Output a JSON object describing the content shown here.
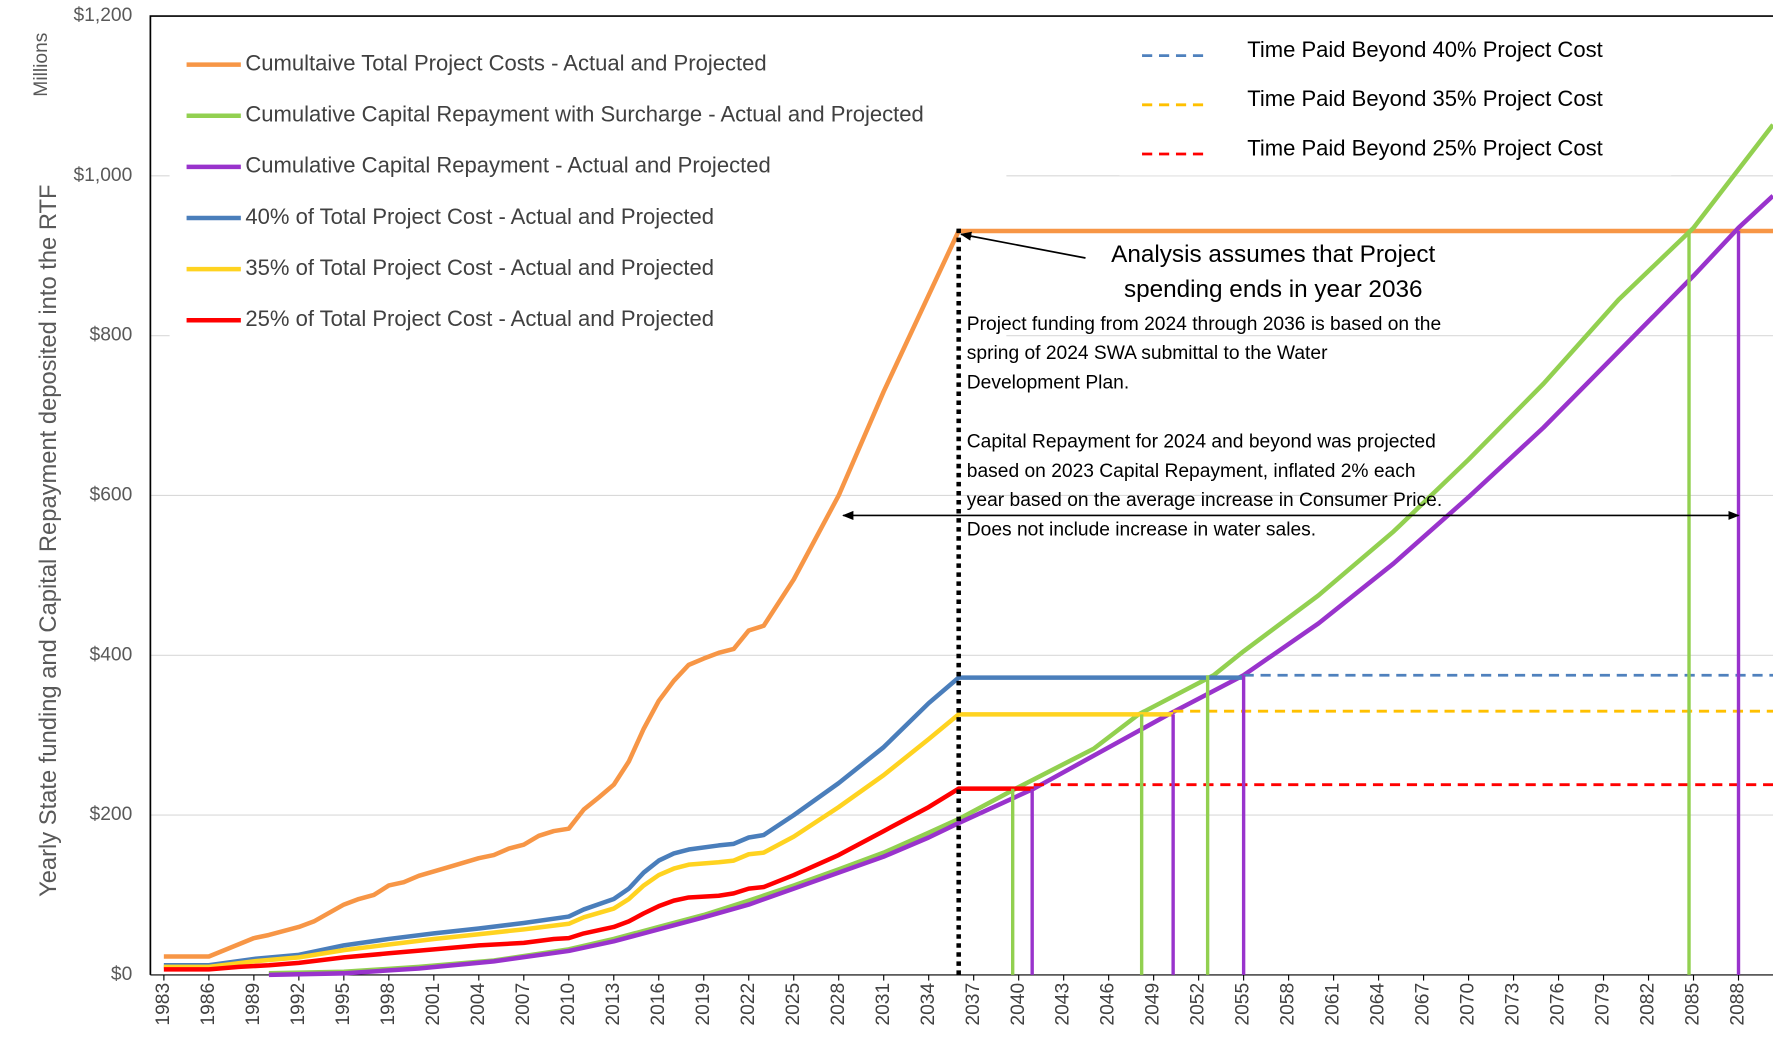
{
  "chart_data": {
    "type": "line",
    "y_axis_label": "Yearly State funding and Capital Repayment deposited into the RTF",
    "y_unit": "Millions",
    "xlim": [
      1982.1,
      2090.3
    ],
    "xticks": [
      1983,
      1986,
      1989,
      1992,
      1995,
      1998,
      2001,
      2004,
      2007,
      2010,
      2013,
      2016,
      2019,
      2022,
      2025,
      2028,
      2031,
      2034,
      2037,
      2040,
      2043,
      2046,
      2049,
      2052,
      2055,
      2058,
      2061,
      2064,
      2067,
      2070,
      2073,
      2076,
      2079,
      2082,
      2085,
      2088
    ],
    "ylim": [
      0,
      1200
    ],
    "yticks": [
      {
        "value": 0,
        "label": "$0"
      },
      {
        "value": 200,
        "label": "$200"
      },
      {
        "value": 400,
        "label": "$400"
      },
      {
        "value": 600,
        "label": "$600"
      },
      {
        "value": 800,
        "label": "$800"
      },
      {
        "value": 1000,
        "label": "$1,000"
      },
      {
        "value": 1200,
        "label": "$1,200"
      }
    ],
    "grid": true,
    "series": [
      {
        "name": "Cumultaive Total Project Costs - Actual and Projected",
        "color": "#f79646",
        "dash": false,
        "legend": "left",
        "x": [
          1983,
          1986,
          1989,
          1990,
          1992,
          1993,
          1995,
          1996,
          1997,
          1998,
          1999,
          2000,
          2002,
          2004,
          2005,
          2006,
          2007,
          2008,
          2009,
          2010,
          2011,
          2012,
          2013,
          2014,
          2015,
          2016,
          2017,
          2018,
          2019,
          2020,
          2021,
          2022,
          2023,
          2025,
          2028,
          2031,
          2036,
          2090.3
        ],
        "values": [
          23,
          23,
          46,
          50,
          60,
          67,
          88,
          95,
          100,
          112,
          116,
          124,
          135,
          146,
          150,
          158,
          163,
          174,
          180,
          183,
          207,
          222,
          238,
          267,
          308,
          343,
          368,
          388,
          396,
          403,
          408,
          431,
          437,
          495,
          600,
          730,
          931,
          931
        ]
      },
      {
        "name": "Cumulative Capital Repayment with Surcharge - Actual and Projected",
        "color": "#92d050",
        "dash": false,
        "legend": "left",
        "x": [
          1990,
          1995,
          2000,
          2005,
          2010,
          2013,
          2016,
          2019,
          2022,
          2025,
          2028,
          2031,
          2034,
          2036,
          2040,
          2045,
          2048,
          2053,
          2055,
          2060,
          2065,
          2070,
          2075,
          2080,
          2085,
          2090.3
        ],
        "values": [
          2,
          4,
          10,
          18,
          32,
          45,
          60,
          75,
          93,
          112,
          132,
          153,
          178,
          195,
          235,
          283,
          326,
          375,
          405,
          475,
          555,
          645,
          740,
          845,
          935,
          1064
        ]
      },
      {
        "name": "Cumulative Capital Repayment - Actual and Projected",
        "color": "#9933cc",
        "dash": false,
        "legend": "left",
        "x": [
          1990,
          1995,
          2000,
          2005,
          2010,
          2013,
          2016,
          2019,
          2022,
          2025,
          2028,
          2031,
          2034,
          2036,
          2041,
          2050,
          2055,
          2060,
          2065,
          2070,
          2075,
          2080,
          2085,
          2088,
          2090.3
        ],
        "values": [
          0,
          2,
          8,
          17,
          30,
          42,
          57,
          72,
          88,
          108,
          128,
          148,
          172,
          190,
          233,
          326,
          375,
          440,
          515,
          598,
          685,
          780,
          875,
          935,
          975
        ]
      },
      {
        "name": "40% of Total Project Cost - Actual and Projected",
        "color": "#4a7ebb",
        "dash": false,
        "legend": "left",
        "x": [
          1983,
          1986,
          1989,
          1992,
          1995,
          1998,
          2001,
          2004,
          2007,
          2010,
          2011,
          2013,
          2014,
          2015,
          2016,
          2017,
          2018,
          2020,
          2021,
          2022,
          2023,
          2025,
          2028,
          2031,
          2034,
          2036,
          2055
        ],
        "values": [
          12,
          12,
          20,
          25,
          37,
          45,
          52,
          58,
          65,
          73,
          82,
          95,
          108,
          128,
          143,
          152,
          157,
          162,
          164,
          172,
          175,
          200,
          240,
          285,
          340,
          372,
          372
        ]
      },
      {
        "name": "35% of Total Project Cost - Actual and Projected",
        "color": "#ffd320",
        "dash": false,
        "legend": "left",
        "x": [
          1983,
          1986,
          1989,
          1992,
          1995,
          1998,
          2001,
          2004,
          2007,
          2010,
          2011,
          2013,
          2014,
          2015,
          2016,
          2017,
          2018,
          2020,
          2021,
          2022,
          2023,
          2025,
          2028,
          2031,
          2034,
          2036,
          2050.3
        ],
        "values": [
          10,
          10,
          17,
          22,
          31,
          38,
          45,
          51,
          57,
          64,
          72,
          83,
          95,
          112,
          125,
          133,
          138,
          141,
          143,
          151,
          153,
          173,
          210,
          250,
          295,
          326,
          326
        ]
      },
      {
        "name": "25% of Total Project Cost - Actual and Projected",
        "color": "#ff0000",
        "dash": false,
        "legend": "left",
        "x": [
          1983,
          1986,
          1988,
          1990,
          1992,
          1995,
          1998,
          2001,
          2004,
          2007,
          2009,
          2010,
          2011,
          2013,
          2014,
          2015,
          2016,
          2017,
          2018,
          2020,
          2021,
          2022,
          2023,
          2025,
          2028,
          2031,
          2034,
          2036,
          2041
        ],
        "values": [
          7,
          7,
          10,
          12,
          15,
          22,
          27,
          32,
          37,
          40,
          45,
          46,
          52,
          60,
          67,
          77,
          86,
          93,
          97,
          99,
          102,
          108,
          110,
          125,
          150,
          180,
          210,
          233,
          233
        ]
      },
      {
        "name": "Time Paid Beyond 40% Project Cost",
        "color": "#4f81bd",
        "dash": true,
        "legend": "right",
        "x": [
          2055,
          2090.3
        ],
        "values": [
          375,
          375
        ]
      },
      {
        "name": "Time Paid Beyond 35% Project Cost",
        "color": "#ffc000",
        "dash": true,
        "legend": "right",
        "x": [
          2050.3,
          2090.3
        ],
        "values": [
          330,
          330
        ]
      },
      {
        "name": "Time Paid Beyond 25% Project Cost",
        "color": "#ff0000",
        "dash": true,
        "legend": "right",
        "x": [
          2041,
          2090.3
        ],
        "values": [
          238,
          238
        ]
      }
    ],
    "vertical_lines": [
      {
        "x": 2039.6,
        "value": 233,
        "color": "#92d050"
      },
      {
        "x": 2040.9,
        "value": 233,
        "color": "#9933cc"
      },
      {
        "x": 2048.2,
        "value": 326,
        "color": "#92d050"
      },
      {
        "x": 2050.3,
        "value": 326,
        "color": "#9933cc"
      },
      {
        "x": 2052.6,
        "value": 375,
        "color": "#92d050"
      },
      {
        "x": 2055.0,
        "value": 375,
        "color": "#9933cc"
      },
      {
        "x": 2084.7,
        "value": 931,
        "color": "#92d050"
      },
      {
        "x": 2088.0,
        "value": 931,
        "color": "#9933cc"
      }
    ],
    "cutoff_line": {
      "x": 2036,
      "value": 937
    },
    "range_arrow": {
      "x": [
        2028.3,
        2088
      ],
      "value": 575
    },
    "annotation": [
      "Analysis assumes that Project",
      "spending ends in year 2036"
    ],
    "notes": [
      [
        "Project funding from 2024 through 2036 is based on the",
        "spring of 2024 SWA submittal to the Water",
        "Development Plan."
      ],
      [
        "Capital Repayment for 2024 and beyond was projected",
        "based on 2023 Capital Repayment, inflated 2% each",
        "year based on the average increase in Consumer Price.",
        "Does not include increase in water sales."
      ]
    ]
  }
}
